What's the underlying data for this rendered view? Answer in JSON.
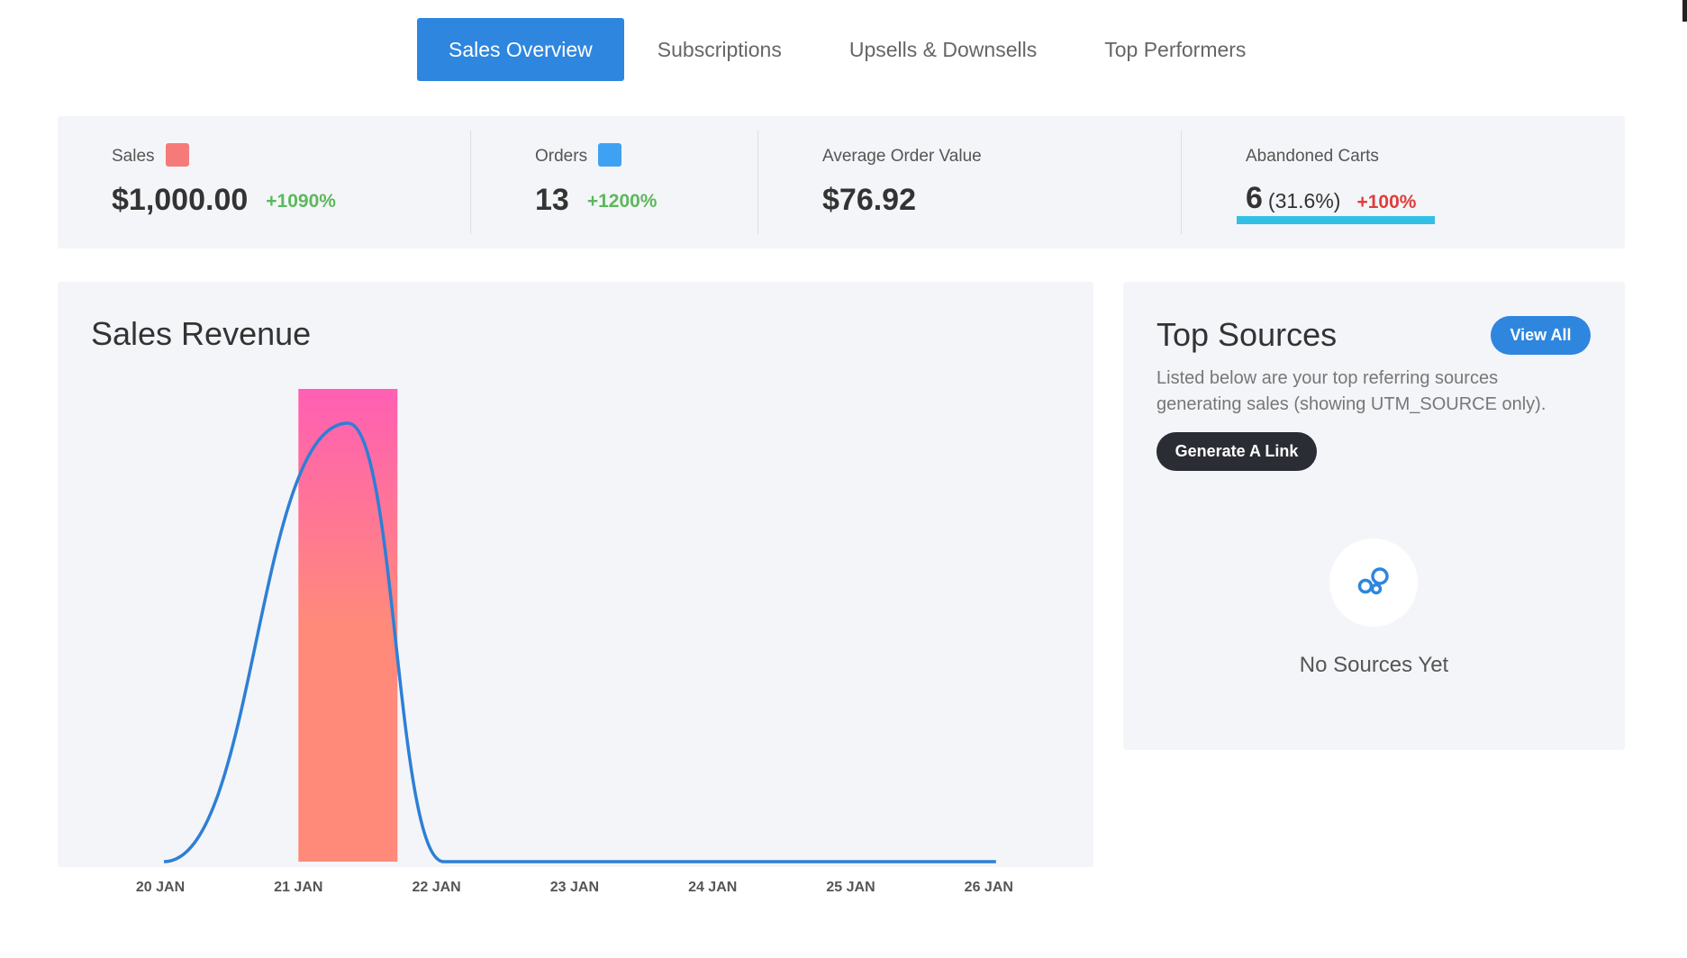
{
  "tabs": [
    {
      "label": "Sales Overview",
      "active": true
    },
    {
      "label": "Subscriptions",
      "active": false
    },
    {
      "label": "Upsells & Downsells",
      "active": false
    },
    {
      "label": "Top Performers",
      "active": false
    }
  ],
  "stats": {
    "sales": {
      "label": "Sales",
      "value": "$1,000.00",
      "delta": "+1090%",
      "swatch_color": "#f77a7a"
    },
    "orders": {
      "label": "Orders",
      "value": "13",
      "delta": "+1200%",
      "swatch_color": "#3fa1f2"
    },
    "aov": {
      "label": "Average Order Value",
      "value": "$76.92"
    },
    "abandoned": {
      "label": "Abandoned Carts",
      "value": "6",
      "pct": "(31.6%)",
      "delta": "+100%",
      "underline_color": "#33c0e6"
    }
  },
  "revenue": {
    "title": "Sales Revenue"
  },
  "chart_data": {
    "type": "bar",
    "categories": [
      "20 JAN",
      "21 JAN",
      "22 JAN",
      "23 JAN",
      "24 JAN",
      "25 JAN",
      "26 JAN"
    ],
    "series": [
      {
        "kind": "bar",
        "values": [
          0,
          1000,
          0,
          0,
          0,
          0,
          0
        ],
        "color_top": "#ff5fb3",
        "color_bottom": "#ff8a7a"
      },
      {
        "kind": "line",
        "values": [
          0,
          13,
          0,
          0,
          0,
          0,
          0
        ],
        "color": "#2d7fd6"
      }
    ],
    "grid": false,
    "legend": "none"
  },
  "sources": {
    "title": "Top Sources",
    "view_all": "View All",
    "description": "Listed below are your top referring sources generating sales (showing UTM_SOURCE only).",
    "generate_link": "Generate A Link",
    "empty_text": "No Sources Yet",
    "icon": "bubbles-icon",
    "icon_color": "#2e86de"
  }
}
